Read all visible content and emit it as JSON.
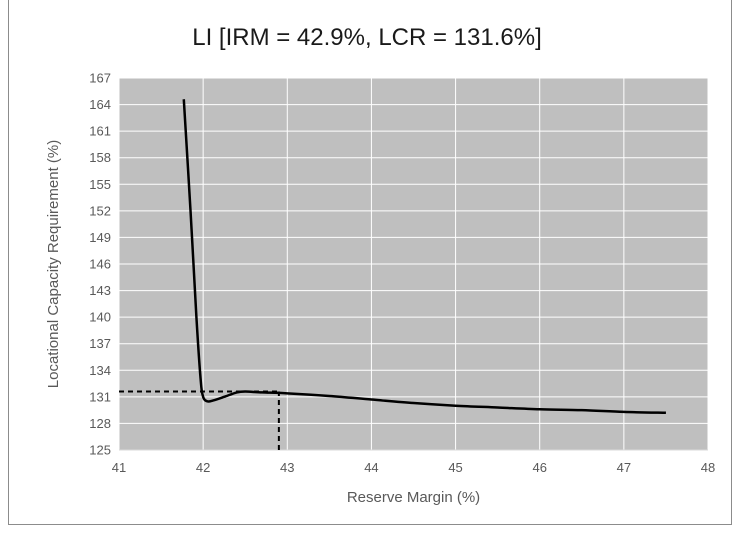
{
  "chart_data": {
    "type": "line",
    "title": "LI [IRM = 42.9%, LCR = 131.6%]",
    "xlabel": "Reserve Margin (%)",
    "ylabel": "Locational Capacity Requirement (%)",
    "xlim": [
      41,
      48
    ],
    "ylim": [
      125,
      167
    ],
    "x_ticks": [
      41,
      42,
      43,
      44,
      45,
      46,
      47,
      48
    ],
    "y_ticks": [
      125,
      128,
      131,
      134,
      137,
      140,
      143,
      146,
      149,
      152,
      155,
      158,
      161,
      164,
      167
    ],
    "grid": true,
    "plot_background": "#bfbfbf",
    "line_color": "#000000",
    "series": [
      {
        "x": [
          41.77,
          41.85,
          41.92,
          41.97,
          42.0,
          42.05,
          42.12,
          42.25,
          42.4,
          42.5,
          42.7,
          43.0,
          43.5,
          44.0,
          44.5,
          45.0,
          45.5,
          46.0,
          46.5,
          47.0,
          47.5
        ],
        "values": [
          164.6,
          152.0,
          140.0,
          133.0,
          131.0,
          130.5,
          130.6,
          131.0,
          131.5,
          131.6,
          131.5,
          131.4,
          131.1,
          130.7,
          130.3,
          130.0,
          129.8,
          129.6,
          129.5,
          129.3,
          129.2
        ]
      }
    ],
    "reference_lines": [
      {
        "type": "horizontal",
        "y": 131.6,
        "x_from": 41,
        "x_to": 42.9,
        "style": "dashed"
      },
      {
        "type": "vertical",
        "x": 42.9,
        "y_from": 125,
        "y_to": 131.6,
        "style": "dashed"
      }
    ]
  }
}
